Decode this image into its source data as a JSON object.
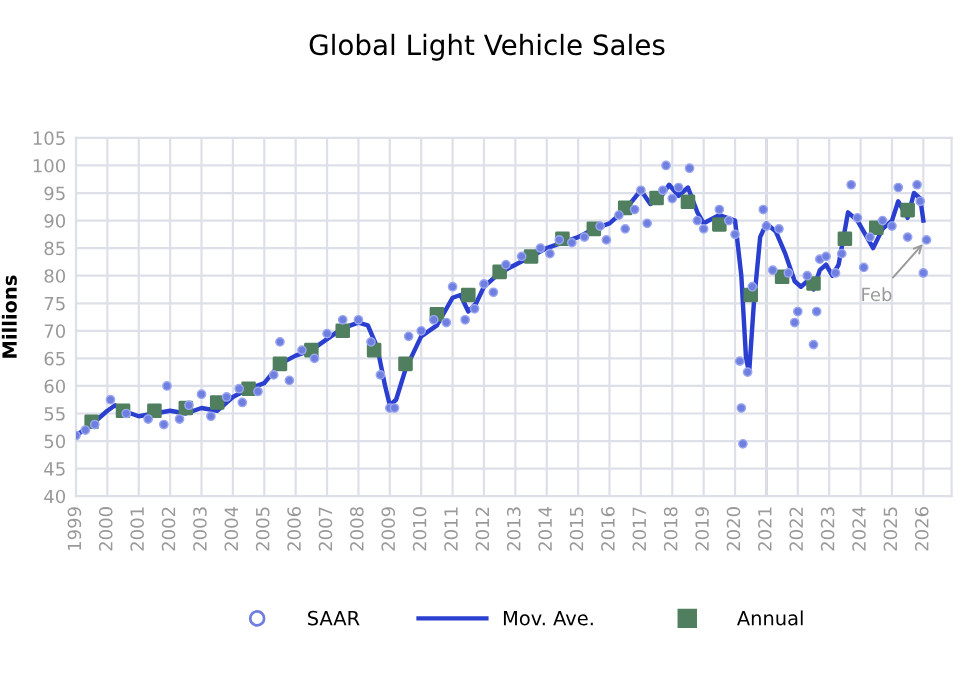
{
  "chart_data": {
    "type": "line",
    "title": "Global Light Vehicle Sales",
    "ylabel": "Millions",
    "xlim": [
      1999,
      2026.9
    ],
    "ylim": [
      40,
      105
    ],
    "xticks": [
      1999,
      2000,
      2001,
      2002,
      2003,
      2004,
      2005,
      2006,
      2007,
      2008,
      2009,
      2010,
      2011,
      2012,
      2013,
      2014,
      2015,
      2016,
      2017,
      2018,
      2019,
      2020,
      2021,
      2022,
      2023,
      2024,
      2025,
      2026
    ],
    "yticks": [
      40,
      45,
      50,
      55,
      60,
      65,
      70,
      75,
      80,
      85,
      90,
      95,
      100,
      105
    ],
    "grid": true,
    "legend": "bottom",
    "ref_lines": [
      {
        "axis": "x",
        "value": 2021,
        "color": "#c8c8d0"
      }
    ],
    "annotations": [
      {
        "text": "Feb",
        "x": 2026.1,
        "y": 86.5
      }
    ],
    "series": [
      {
        "name": "SAAR",
        "type": "scatter",
        "marker": "circle",
        "color": "#6f7fe0",
        "x": [
          1999.0,
          1999.3,
          1999.6,
          2000.1,
          2000.6,
          2001.3,
          2001.8,
          2001.9,
          2002.3,
          2002.6,
          2003.0,
          2003.3,
          2003.8,
          2004.2,
          2004.3,
          2004.8,
          2005.3,
          2005.5,
          2005.8,
          2006.2,
          2006.6,
          2007.0,
          2007.5,
          2008.0,
          2008.4,
          2008.7,
          2009.0,
          2009.15,
          2009.6,
          2010.0,
          2010.4,
          2010.8,
          2011.0,
          2011.4,
          2011.7,
          2012.0,
          2012.3,
          2012.7,
          2013.2,
          2013.8,
          2014.1,
          2014.4,
          2014.8,
          2015.2,
          2015.7,
          2015.9,
          2016.3,
          2016.5,
          2016.8,
          2017.0,
          2017.2,
          2017.7,
          2017.8,
          2018.0,
          2018.2,
          2018.55,
          2018.8,
          2019.0,
          2019.5,
          2019.8,
          2020.0,
          2020.15,
          2020.2,
          2020.25,
          2020.4,
          2020.55,
          2020.9,
          2021.0,
          2021.2,
          2021.4,
          2021.7,
          2021.9,
          2022.0,
          2022.3,
          2022.5,
          2022.6,
          2022.7,
          2022.9,
          2023.2,
          2023.4,
          2023.7,
          2023.9,
          2024.1,
          2024.3,
          2024.7,
          2025.0,
          2025.2,
          2025.5,
          2025.8,
          2025.9,
          2026.0,
          2026.1
        ],
        "values": [
          51,
          52,
          53,
          57.5,
          55,
          54,
          53,
          60,
          54,
          56.5,
          58.5,
          54.5,
          58,
          59.5,
          57,
          59,
          62,
          68,
          61,
          66.5,
          65,
          69.5,
          72,
          72,
          68,
          62,
          56,
          56,
          69,
          70,
          72,
          71.5,
          78,
          72,
          74,
          78.5,
          77,
          82,
          83.5,
          85,
          84,
          86.5,
          86,
          87,
          89,
          86.5,
          91,
          88.5,
          92,
          95.5,
          89.5,
          95.5,
          100,
          94,
          96,
          99.5,
          90,
          88.5,
          92,
          90,
          87.5,
          64.5,
          56,
          49.5,
          62.5,
          78,
          92,
          89,
          81,
          88.5,
          80.5,
          71.5,
          73.5,
          80,
          67.5,
          73.5,
          83,
          83.5,
          80.5,
          84,
          96.5,
          90.5,
          81.5,
          87,
          90,
          89,
          96,
          87,
          96.5,
          93.5,
          80.5,
          86.5
        ]
      },
      {
        "name": "Mov. Ave.",
        "marker": "none",
        "line_style": "solid",
        "color": "#2a3fd0",
        "x": [
          1999.0,
          1999.5,
          2000.0,
          2000.25,
          2000.5,
          2001.0,
          2001.5,
          2002.0,
          2002.5,
          2003.0,
          2003.5,
          2004.0,
          2004.5,
          2005.0,
          2005.5,
          2006.0,
          2006.5,
          2007.0,
          2007.5,
          2008.0,
          2008.3,
          2008.6,
          2008.85,
          2009.0,
          2009.2,
          2009.5,
          2010.0,
          2010.5,
          2011.0,
          2011.25,
          2011.5,
          2011.75,
          2012.0,
          2012.5,
          2013.0,
          2013.5,
          2014.0,
          2014.5,
          2015.0,
          2015.5,
          2016.0,
          2016.5,
          2017.0,
          2017.3,
          2017.6,
          2017.9,
          2018.2,
          2018.5,
          2018.8,
          2019.0,
          2019.5,
          2020.0,
          2020.2,
          2020.35,
          2020.45,
          2020.6,
          2020.8,
          2021.0,
          2021.3,
          2021.6,
          2021.9,
          2022.1,
          2022.3,
          2022.5,
          2022.7,
          2022.9,
          2023.1,
          2023.3,
          2023.6,
          2023.9,
          2024.1,
          2024.4,
          2024.7,
          2025.0,
          2025.2,
          2025.5,
          2025.7,
          2025.9,
          2026.0
        ],
        "values": [
          51,
          53,
          55.5,
          56.5,
          55.5,
          54.5,
          55,
          55.5,
          55,
          56,
          55.5,
          58,
          59.5,
          60.5,
          64,
          65.5,
          66.5,
          68.5,
          70.5,
          71.5,
          71,
          67,
          60,
          56.5,
          57.5,
          63,
          69,
          71,
          76,
          76.5,
          73.5,
          75,
          78,
          80.5,
          82,
          83.5,
          85,
          86,
          87,
          88.5,
          89.5,
          92,
          95.5,
          93,
          94,
          96.5,
          94.5,
          96,
          91.5,
          89.5,
          91,
          90,
          80,
          65,
          62.5,
          75,
          87,
          89.5,
          88,
          84,
          79,
          78,
          79,
          77.5,
          81,
          82,
          80,
          82,
          91.5,
          90,
          88,
          85,
          88.5,
          90,
          93.5,
          90.5,
          95,
          94,
          90
        ]
      },
      {
        "name": "Annual",
        "type": "scatter",
        "marker": "square",
        "color": "#4f7f5f",
        "x": [
          1999.5,
          2000.5,
          2001.5,
          2002.5,
          2003.5,
          2004.5,
          2005.5,
          2006.5,
          2007.5,
          2008.5,
          2009.5,
          2010.5,
          2011.5,
          2012.5,
          2013.5,
          2014.5,
          2015.5,
          2016.5,
          2017.5,
          2018.5,
          2019.5,
          2020.5,
          2021.5,
          2022.5,
          2023.5,
          2024.5,
          2025.5
        ],
        "values": [
          53.5,
          55.5,
          55.5,
          56,
          57,
          59.5,
          64,
          66.5,
          70,
          66.5,
          64,
          73,
          76.5,
          80.7,
          83.5,
          86.7,
          88.5,
          92.3,
          94.1,
          93.4,
          89.3,
          76.5,
          79.8,
          78.6,
          86.7,
          88.7,
          91.9
        ]
      }
    ]
  }
}
